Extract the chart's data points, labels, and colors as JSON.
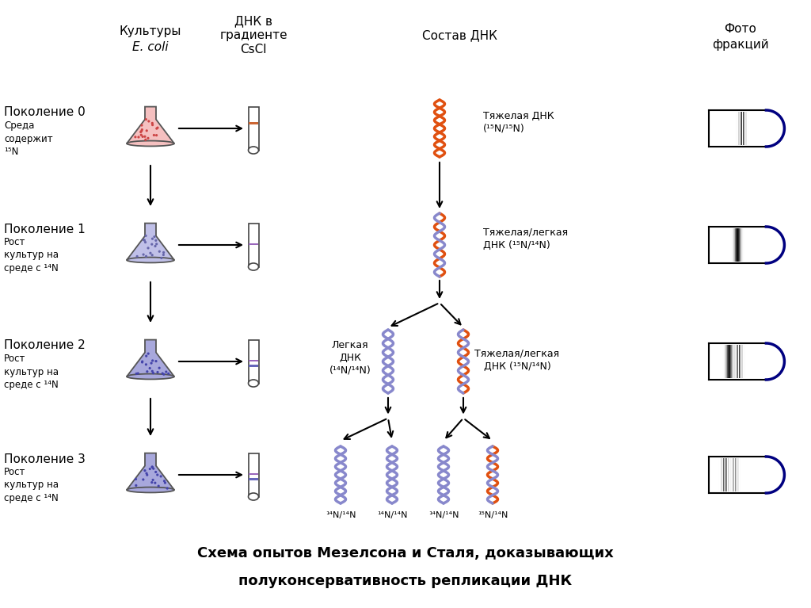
{
  "title_line1": "Схема опытов Мезелсона и Сталя, доказывающих",
  "title_line2": "полуконсервативность репликации ДНК",
  "generations": [
    "Поколение 0",
    "Поколение 1",
    "Поколение 2",
    "Поколение 3"
  ],
  "gen_subtitles": [
    "Среда\nсодержит\n¹⁵N",
    "Рост\nкультур на\nсреде с ¹⁴N",
    "Рост\nкультур на\nсреде с ¹⁴N",
    "Рост\nкультур на\nсреде с ¹⁴N"
  ],
  "flask_colors_fill": [
    "#f5c0c0",
    "#c0c0e8",
    "#a8a8dc",
    "#a8a8dc"
  ],
  "flask_colors_dots": [
    "#cc4444",
    "#6666aa",
    "#4444aa",
    "#4444aa"
  ],
  "tube_band_colors": [
    [
      [
        "#cc6633",
        0.62
      ]
    ],
    [
      [
        "#9966bb",
        0.52
      ]
    ],
    [
      [
        "#6666bb",
        0.4
      ],
      [
        "#9966bb",
        0.52
      ]
    ],
    [
      [
        "#6666bb",
        0.4
      ],
      [
        "#9966bb",
        0.52
      ]
    ]
  ],
  "background_color": "#ffffff",
  "dna_orange": "#e05010",
  "dna_purple": "#8888cc",
  "tube_border": "#444444",
  "photo_border": "#000080",
  "photo_bg": "#e8e8e8",
  "header_kultury": "Культуры",
  "header_ecoli": "E. coli",
  "header_dnk": "ДНК в",
  "header_gradiente": "градиенте",
  "header_cscl": "CsCl",
  "header_sostav": "Состав ДНК",
  "header_foto": "Фото",
  "header_fraktsiy": "фракций",
  "label_heavy": "Тяжелая ДНК\n(¹⁵N/¹⁵N)",
  "label_hybrid": "Тяжелая/легкая\nДНК (¹⁵N/¹⁴N)",
  "label_light": "Легкая\nДНК\n(¹⁴N/¹⁴N)",
  "label_hybrid2": "Тяжелая/легкая\nДНК (¹⁵N/¹⁴N)",
  "gen3_labels": [
    "¹⁴N/¹⁴N",
    "¹⁴N/¹⁴N",
    "¹⁴N/¹⁴N",
    "¹⁵N/¹⁴N"
  ]
}
